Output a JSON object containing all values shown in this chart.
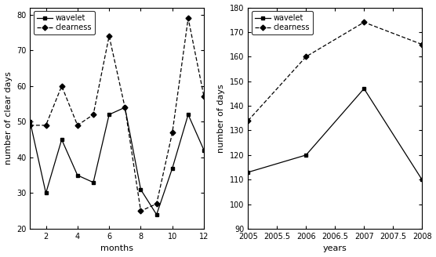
{
  "left": {
    "months": [
      1,
      2,
      3,
      4,
      5,
      6,
      7,
      8,
      9,
      10,
      11,
      12
    ],
    "wavelet": [
      50,
      30,
      45,
      35,
      33,
      52,
      54,
      31,
      24,
      37,
      52,
      42
    ],
    "clearness": [
      49,
      49,
      60,
      49,
      52,
      74,
      54,
      25,
      27,
      47,
      79,
      57
    ],
    "xlabel": "months",
    "ylabel": "number of clear days",
    "xlim": [
      1,
      12
    ],
    "ylim": [
      20,
      82
    ],
    "yticks": [
      20,
      30,
      40,
      50,
      60,
      70,
      80
    ],
    "xticks": [
      2,
      4,
      6,
      8,
      10,
      12
    ]
  },
  "right": {
    "years": [
      2005,
      2006,
      2007,
      2008
    ],
    "wavelet": [
      113,
      120,
      147,
      110
    ],
    "clearness": [
      134,
      160,
      174,
      165
    ],
    "xlabel": "years",
    "ylabel": "number of days",
    "xlim": [
      2005,
      2008
    ],
    "ylim": [
      90,
      180
    ],
    "yticks": [
      90,
      100,
      110,
      120,
      130,
      140,
      150,
      160,
      170,
      180
    ],
    "xticks": [
      2005,
      2005.5,
      2006,
      2006.5,
      2007,
      2007.5,
      2008
    ]
  },
  "line_color": "#000000",
  "legend_fontsize": 7,
  "tick_fontsize": 7,
  "label_fontsize": 8
}
